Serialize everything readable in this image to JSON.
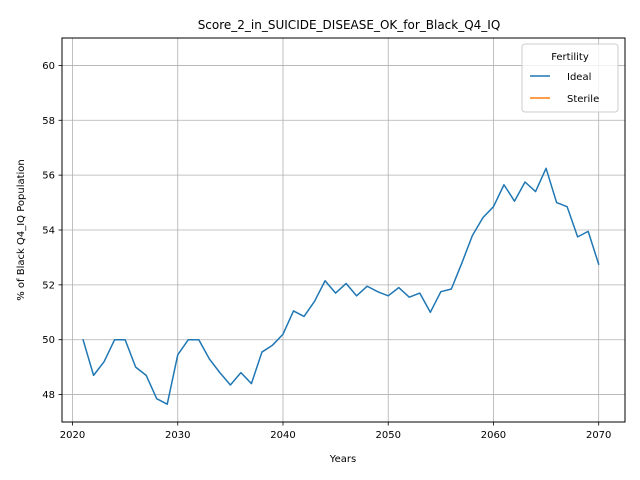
{
  "chart_data": {
    "type": "line",
    "title": "Score_2_in_SUICIDE_DISEASE_OK_for_Black_Q4_IQ",
    "xlabel": "Years",
    "ylabel": "% of Black Q4_IQ Population",
    "xlim": [
      2019,
      2072.5
    ],
    "ylim": [
      47,
      61
    ],
    "xticks": [
      2020,
      2030,
      2040,
      2050,
      2060,
      2070
    ],
    "yticks": [
      48,
      50,
      52,
      54,
      56,
      58,
      60
    ],
    "grid": true,
    "legend": {
      "title": "Fertility",
      "placement": "top-right"
    },
    "series": [
      {
        "name": "Ideal",
        "color": "#1f77b4",
        "x": [
          2021,
          2022,
          2023,
          2024,
          2025,
          2026,
          2027,
          2028,
          2029,
          2030,
          2031,
          2032,
          2033,
          2034,
          2035,
          2036,
          2037,
          2038,
          2039,
          2040,
          2041,
          2042,
          2043,
          2044,
          2045,
          2046,
          2047,
          2048,
          2049,
          2050,
          2051,
          2052,
          2053,
          2054,
          2055,
          2056,
          2057,
          2058,
          2059,
          2060,
          2061,
          2062,
          2063,
          2064,
          2065,
          2066,
          2067,
          2068,
          2069,
          2070
        ],
        "values": [
          50.0,
          48.7,
          49.2,
          50.0,
          50.0,
          49.0,
          48.7,
          47.85,
          47.65,
          49.45,
          50.0,
          50.0,
          49.3,
          48.8,
          48.35,
          48.8,
          48.4,
          49.55,
          49.8,
          50.2,
          51.05,
          50.85,
          51.4,
          52.15,
          51.7,
          52.05,
          51.6,
          51.95,
          51.75,
          51.6,
          51.9,
          51.55,
          51.7,
          51.0,
          51.75,
          51.85,
          52.8,
          53.8,
          54.45,
          54.85,
          55.65,
          55.05,
          55.75,
          55.4,
          56.25,
          55.0,
          54.85,
          53.75,
          53.95,
          52.75
        ]
      },
      {
        "name": "Sterile",
        "color": "#ff7f0e",
        "x": [],
        "values": []
      }
    ]
  }
}
